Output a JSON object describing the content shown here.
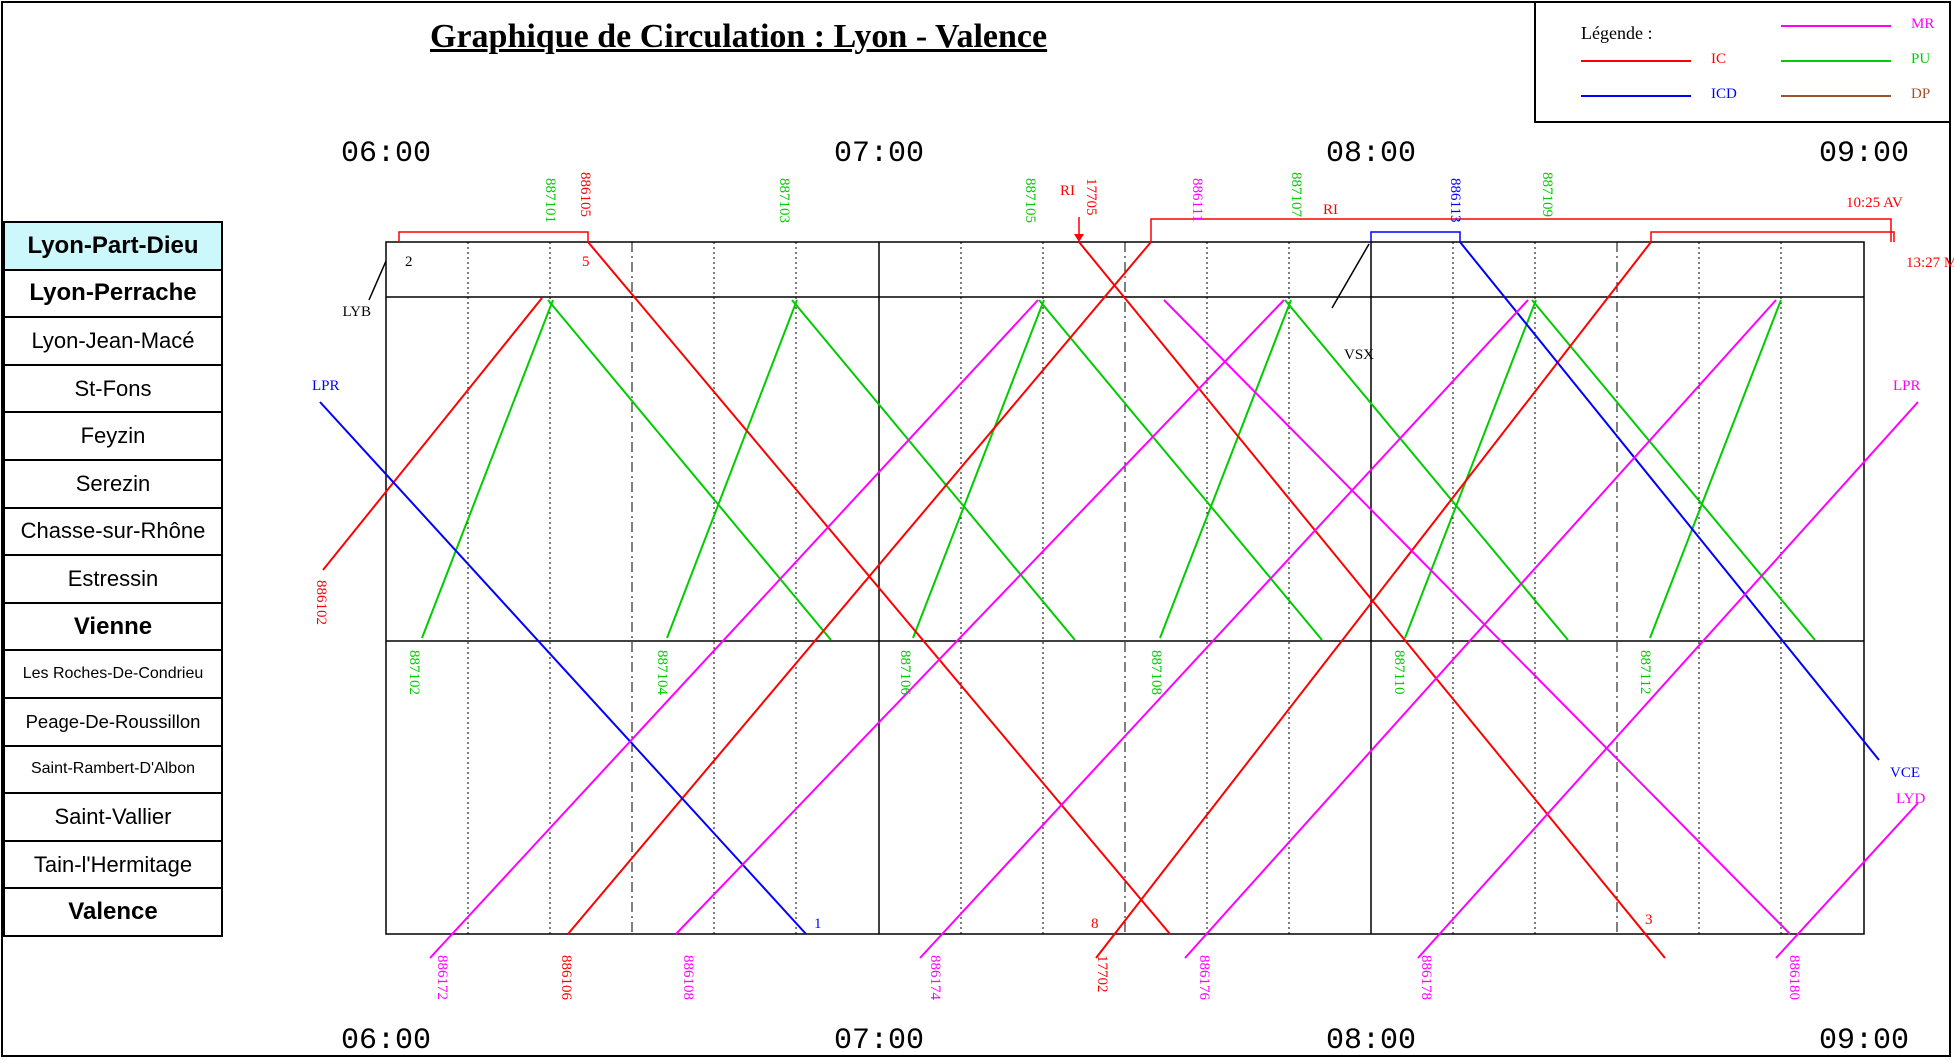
{
  "title": "Graphique de Circulation : Lyon - Valence",
  "legend": {
    "title": "Légende :",
    "items": [
      {
        "label": "IC",
        "color": "#ff0000"
      },
      {
        "label": "ICD",
        "color": "#0000ff"
      },
      {
        "label": "MR",
        "color": "#ff00ff"
      },
      {
        "label": "PU",
        "color": "#00cc00"
      },
      {
        "label": "DP",
        "color": "#a0522d"
      }
    ]
  },
  "time_labels_top": [
    "06:00",
    "07:00",
    "08:00",
    "09:00"
  ],
  "time_labels_bottom": [
    "06:00",
    "07:00",
    "08:00",
    "09:00"
  ],
  "stations": [
    "Lyon-Part-Dieu",
    "Lyon-Perrache",
    "Lyon-Jean-Macé",
    "St-Fons",
    "Feyzin",
    "Serezin",
    "Chasse-sur-Rhône",
    "Estressin",
    "Vienne",
    "Les Roches-De-Condrieu",
    "Peage-De-Roussillon",
    "Saint-Rambert-D'Albon",
    "Saint-Vallier",
    "Tain-l'Hermitage",
    "Valence"
  ],
  "annotations": {
    "lyb": "LYB",
    "lpr_left": "LPR",
    "lpr_right": "LPR",
    "vsx": "VSX",
    "vce": "VCE",
    "lyd": "LYD",
    "ri1": "RI",
    "ri2": "RI",
    "t1025": "10:25 AV",
    "t1327": "13:27 M"
  },
  "trains": {
    "top": [
      "887101",
      "886105",
      "887103",
      "887105",
      "17705",
      "886111",
      "887107",
      "886113",
      "887109"
    ],
    "middle": [
      "886102",
      "887102",
      "887104",
      "887106",
      "887108",
      "887110",
      "887112"
    ],
    "bottom": [
      "886172",
      "886106",
      "886108",
      "886174",
      "17702",
      "886176",
      "886178",
      "886180"
    ]
  },
  "track_numbers": {
    "n2": "2",
    "n5": "5",
    "n8": "8",
    "n3": "3",
    "n1": "1"
  }
}
